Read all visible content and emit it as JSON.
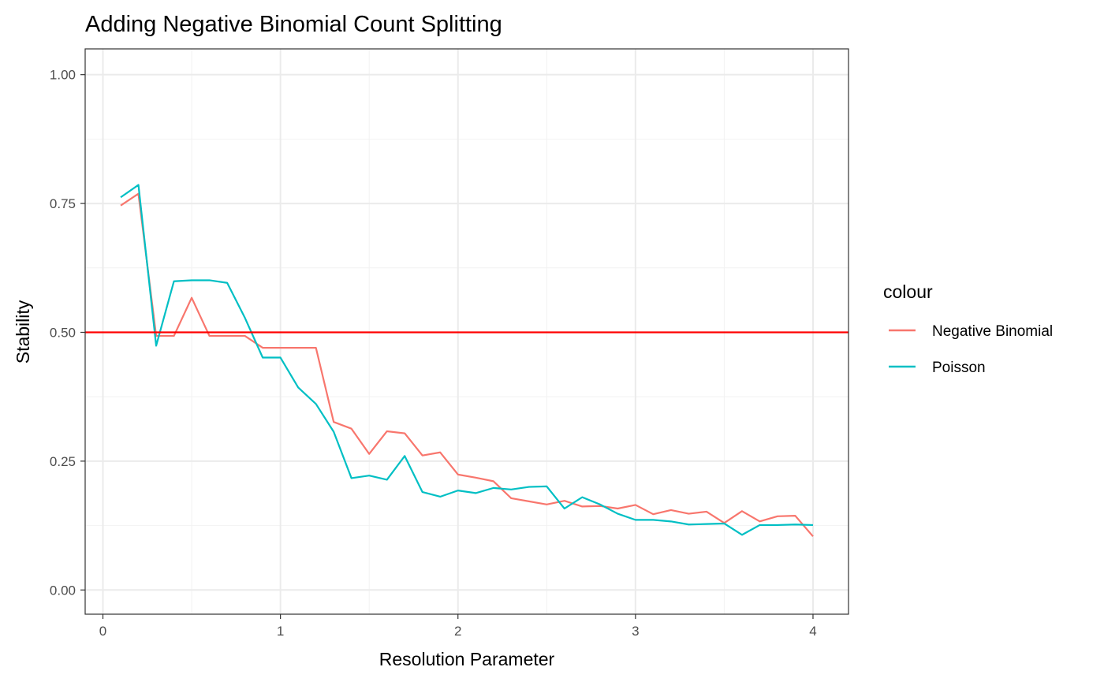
{
  "chart_data": {
    "type": "line",
    "title": "Adding Negative Binomial Count Splitting",
    "xlabel": "Resolution Parameter",
    "ylabel": "Stability",
    "xlim": [
      -0.1,
      4.2
    ],
    "ylim": [
      -0.047,
      1.05
    ],
    "x_ticks": [
      0,
      1,
      2,
      3,
      4
    ],
    "x_tick_labels": [
      "0",
      "1",
      "2",
      "3",
      "4"
    ],
    "y_ticks": [
      0,
      0.25,
      0.5,
      0.75,
      1.0
    ],
    "y_tick_labels": [
      "0.00",
      "0.25",
      "0.50",
      "0.75",
      "1.00"
    ],
    "grid": true,
    "legend_position": "right",
    "legend_title": "colour",
    "hline": {
      "y": 0.5,
      "color": "#FF0000"
    },
    "x": [
      0.1,
      0.2,
      0.3,
      0.4,
      0.5,
      0.6,
      0.7,
      0.8,
      0.9,
      1.0,
      1.1,
      1.2,
      1.3,
      1.4,
      1.5,
      1.6,
      1.7,
      1.8,
      1.9,
      2.0,
      2.1,
      2.2,
      2.3,
      2.4,
      2.5,
      2.6,
      2.7,
      2.8,
      2.9,
      3.0,
      3.1,
      3.2,
      3.3,
      3.4,
      3.5,
      3.6,
      3.7,
      3.8,
      3.9,
      4.0
    ],
    "series": [
      {
        "name": "Negative Binomial",
        "color": "#F8766D",
        "values": [
          0.746,
          0.769,
          0.493,
          0.493,
          0.567,
          0.493,
          0.493,
          0.493,
          0.47,
          0.47,
          0.47,
          0.47,
          0.326,
          0.313,
          0.264,
          0.308,
          0.304,
          0.261,
          0.267,
          0.224,
          0.218,
          0.211,
          0.178,
          0.172,
          0.166,
          0.173,
          0.162,
          0.163,
          0.158,
          0.165,
          0.147,
          0.155,
          0.148,
          0.152,
          0.13,
          0.153,
          0.133,
          0.143,
          0.144,
          0.104
        ]
      },
      {
        "name": "Poisson",
        "color": "#00BFC4",
        "values": [
          0.762,
          0.786,
          0.474,
          0.599,
          0.601,
          0.601,
          0.596,
          0.528,
          0.451,
          0.451,
          0.393,
          0.361,
          0.307,
          0.217,
          0.222,
          0.214,
          0.26,
          0.19,
          0.181,
          0.193,
          0.188,
          0.198,
          0.195,
          0.2,
          0.201,
          0.158,
          0.18,
          0.166,
          0.148,
          0.136,
          0.136,
          0.133,
          0.127,
          0.128,
          0.129,
          0.107,
          0.126,
          0.126,
          0.127,
          0.126
        ]
      }
    ]
  }
}
